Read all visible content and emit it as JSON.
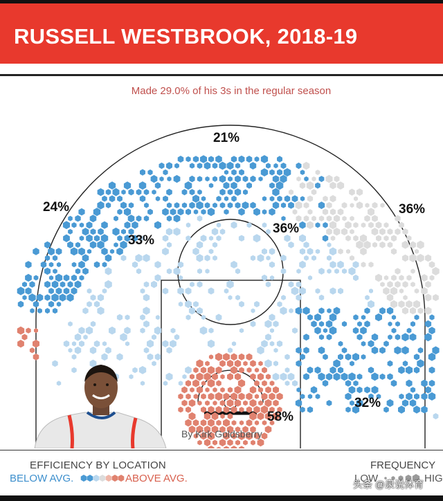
{
  "header": {
    "title": "RUSSELL WESTBROOK, 2018-19",
    "subtitle": "Made 29.0% of his 3s in the regular season"
  },
  "credit": "By Kirk Goldsberry",
  "colors": {
    "banner": "#e8392d",
    "below_avg": "#4a9ad4",
    "below_avg_light": "#b9d7ee",
    "neutral": "#dcdcdc",
    "above_avg": "#e0826f",
    "above_avg_light": "#efb6a8"
  },
  "chart_data": {
    "type": "heatmap",
    "title": "RUSSELL WESTBROOK, 2018-19",
    "subtitle": "Made 29.0% of his 3s in the regular season",
    "zones": [
      {
        "zone": "left corner three",
        "label": "24%",
        "value": 24,
        "efficiency": "below average"
      },
      {
        "zone": "top of key three",
        "label": "21%",
        "value": 21,
        "efficiency": "below average"
      },
      {
        "zone": "right wing three",
        "label": "36%",
        "value": 36,
        "efficiency": "average"
      },
      {
        "zone": "left mid-range",
        "label": "33%",
        "value": 33,
        "efficiency": "below average"
      },
      {
        "zone": "right elbow mid-range",
        "label": "36%",
        "value": 36,
        "efficiency": "below average"
      },
      {
        "zone": "right baseline",
        "label": "32%",
        "value": 32,
        "efficiency": "below average"
      },
      {
        "zone": "restricted area",
        "label": "58%",
        "value": 58,
        "efficiency": "above average"
      }
    ],
    "legend": {
      "efficiency_title": "EFFICIENCY BY LOCATION",
      "below_label": "BELOW AVG.",
      "above_label": "ABOVE AVG.",
      "frequency_title": "FREQUENCY",
      "low_label": "LOW",
      "high_label": "HIG"
    }
  },
  "watermark": "头条 @泉说体育"
}
